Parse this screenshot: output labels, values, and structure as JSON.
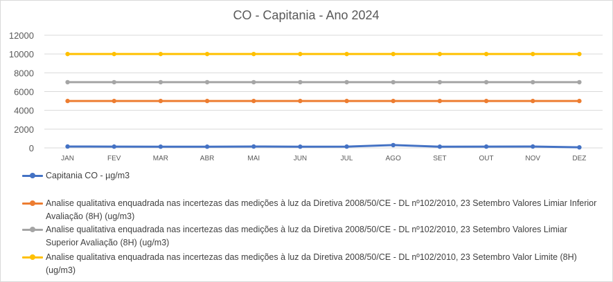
{
  "chart_data": {
    "type": "line",
    "title": "CO - Capitania - Ano 2024",
    "categories": [
      "JAN",
      "FEV",
      "MAR",
      "ABR",
      "MAI",
      "JUN",
      "JUL",
      "AGO",
      "SET",
      "OUT",
      "NOV",
      "DEZ"
    ],
    "ylim": [
      0,
      12000
    ],
    "yticks": [
      "0",
      "2000",
      "4000",
      "6000",
      "8000",
      "10000",
      "12000"
    ],
    "grid": true,
    "legend_position": "bottom",
    "series": [
      {
        "name": "Capitania CO - µg/m3",
        "color": "#4472C4",
        "values": [
          150,
          140,
          130,
          130,
          150,
          130,
          140,
          300,
          130,
          140,
          150,
          60
        ]
      },
      {
        "name": "Analise qualitativa enquadrada nas incertezas das medições à luz da Diretiva 2008/50/CE -  DL nº102/2010, 23 Setembro Valores Limiar Inferior Avaliação (8H) (ug/m3)",
        "color": "#ED7D31",
        "values": [
          5000,
          5000,
          5000,
          5000,
          5000,
          5000,
          5000,
          5000,
          5000,
          5000,
          5000,
          5000
        ]
      },
      {
        "name": "Analise qualitativa enquadrada nas incertezas das medições à luz da Diretiva 2008/50/CE -  DL nº102/2010, 23 Setembro Valores Limiar Superior Avaliação (8H) (ug/m3)",
        "color": "#A5A5A5",
        "values": [
          7000,
          7000,
          7000,
          7000,
          7000,
          7000,
          7000,
          7000,
          7000,
          7000,
          7000,
          7000
        ]
      },
      {
        "name": "Analise qualitativa enquadrada nas incertezas das medições à luz da Diretiva 2008/50/CE -  DL nº102/2010, 23 Setembro Valor Limite (8H) (ug/m3)",
        "color": "#FFC000",
        "values": [
          10000,
          10000,
          10000,
          10000,
          10000,
          10000,
          10000,
          10000,
          10000,
          10000,
          10000,
          10000
        ]
      }
    ]
  }
}
